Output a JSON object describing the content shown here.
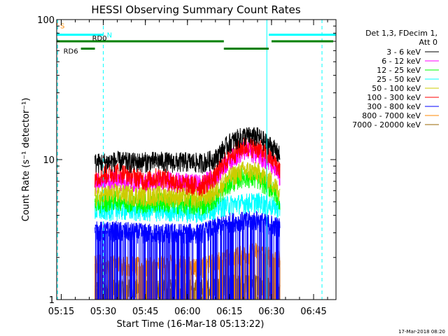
{
  "chart_data": {
    "type": "line",
    "title": "HESSI Observing Summary Count Rates",
    "xlabel": "Start Time (16-Mar-18 05:13:22)",
    "ylabel": "Count Rate (s⁻¹ detector⁻¹)",
    "yscale": "log",
    "xlim": [
      "05:13:22",
      "06:53:00"
    ],
    "ylim": [
      1,
      100
    ],
    "x_ticks": [
      "05:15",
      "05:30",
      "05:45",
      "06:00",
      "06:15",
      "06:30",
      "06:45"
    ],
    "y_ticks": [
      "1",
      "10",
      "100"
    ],
    "legend_header": [
      "Det 1,3, FDecim 1,",
      "Att 0"
    ],
    "legend_position": "right",
    "series": [
      {
        "name": "3 - 6 keV",
        "color": "#000000",
        "x": [
          "05:27",
          "05:30",
          "05:35",
          "05:40",
          "05:45",
          "05:50",
          "05:55",
          "06:00",
          "06:05",
          "06:10",
          "06:15",
          "06:20",
          "06:25",
          "06:30",
          "06:33"
        ],
        "y": [
          9.5,
          9.6,
          9.8,
          9.6,
          9.7,
          9.8,
          9.6,
          9.7,
          9.5,
          10.2,
          13.2,
          14.8,
          14.6,
          12.5,
          10.6
        ]
      },
      {
        "name": "6 - 12 keV",
        "color": "#ff00ff",
        "x": [
          "05:27",
          "05:30",
          "05:35",
          "05:40",
          "05:45",
          "05:50",
          "05:55",
          "06:00",
          "06:05",
          "06:10",
          "06:15",
          "06:20",
          "06:25",
          "06:30",
          "06:33"
        ],
        "y": [
          6.8,
          7.0,
          7.2,
          7.0,
          6.9,
          7.1,
          7.0,
          6.8,
          6.7,
          7.6,
          10.0,
          11.6,
          11.2,
          9.2,
          7.4
        ]
      },
      {
        "name": "12 - 25 keV",
        "color": "#00ff00",
        "x": [
          "05:27",
          "05:30",
          "05:35",
          "05:40",
          "05:45",
          "05:50",
          "05:55",
          "06:00",
          "06:05",
          "06:10",
          "06:15",
          "06:20",
          "06:25",
          "06:30",
          "06:33"
        ],
        "y": [
          4.9,
          5.0,
          5.2,
          5.0,
          4.9,
          5.0,
          4.9,
          4.8,
          4.7,
          5.3,
          6.8,
          7.6,
          7.3,
          6.2,
          5.2
        ]
      },
      {
        "name": "25 - 50 keV",
        "color": "#00ffff",
        "x": [
          "05:27",
          "05:35",
          "05:45",
          "05:55",
          "06:05",
          "06:15",
          "06:25",
          "06:33"
        ],
        "y": [
          4.3,
          4.4,
          4.3,
          4.3,
          4.2,
          4.8,
          5.0,
          4.5
        ]
      },
      {
        "name": "50 - 100 keV",
        "color": "#cccc00",
        "x": [
          "05:27",
          "05:30",
          "05:35",
          "05:40",
          "05:45",
          "05:50",
          "05:55",
          "06:00",
          "06:05",
          "06:10",
          "06:15",
          "06:20",
          "06:25",
          "06:30",
          "06:33"
        ],
        "y": [
          5.4,
          5.6,
          5.8,
          5.6,
          5.5,
          5.6,
          5.5,
          5.4,
          5.3,
          5.9,
          7.5,
          8.4,
          8.2,
          7.0,
          5.8
        ]
      },
      {
        "name": "100 - 300 keV",
        "color": "#ff0000",
        "x": [
          "05:27",
          "05:30",
          "05:35",
          "05:40",
          "05:45",
          "05:50",
          "05:55",
          "06:00",
          "06:05",
          "06:10",
          "06:15",
          "06:20",
          "06:25",
          "06:30",
          "06:33"
        ],
        "y": [
          7.6,
          7.9,
          8.2,
          7.8,
          7.1,
          7.6,
          7.0,
          6.6,
          6.5,
          7.6,
          10.6,
          12.5,
          12.2,
          10.2,
          8.6
        ]
      },
      {
        "name": "300 - 800 keV",
        "color": "#0000ff",
        "x": [
          "05:27",
          "05:35",
          "05:45",
          "05:55",
          "06:05",
          "06:15",
          "06:25",
          "06:33"
        ],
        "y": [
          3.1,
          3.1,
          3.0,
          3.0,
          3.0,
          3.6,
          3.7,
          3.3
        ]
      },
      {
        "name": "800 - 7000 keV",
        "color": "#ff8800",
        "x": [
          "05:27",
          "05:35",
          "05:45",
          "05:55",
          "06:05",
          "06:15",
          "06:25",
          "06:33"
        ],
        "y": [
          1.8,
          1.8,
          1.7,
          1.8,
          1.7,
          2.0,
          2.2,
          1.9
        ]
      },
      {
        "name": "7000 - 20000 keV",
        "color": "#996600",
        "x": [
          "05:27",
          "05:35",
          "05:45",
          "05:55",
          "06:05",
          "06:15",
          "06:25",
          "06:33"
        ],
        "y": [
          1.2,
          1.2,
          1.2,
          1.2,
          1.2,
          1.3,
          1.3,
          1.2
        ]
      }
    ],
    "annotations": {
      "flags": [
        {
          "label": "S",
          "color": "#ff8800",
          "segments": [
            [
              "05:13:22",
              "05:13:40"
            ]
          ],
          "y": 93
        },
        {
          "label": "N",
          "color": "#00ffff",
          "segments": [
            [
              "05:13:22",
              "05:30"
            ],
            [
              "06:29",
              "06:53"
            ]
          ],
          "y": 78
        },
        {
          "label": "RD0",
          "color": "#008000",
          "segments": [
            [
              "05:13:22",
              "05:31"
            ],
            [
              "05:31",
              "06:13"
            ],
            [
              "06:30",
              "06:52"
            ]
          ],
          "y": 70
        },
        {
          "label": "RD6",
          "color": "#008000",
          "segments": [
            [
              "05:22",
              "05:27"
            ],
            [
              "06:13",
              "06:29"
            ]
          ],
          "y": 62
        }
      ],
      "vertical_lines": [
        {
          "x": "05:13:40",
          "color": "#00ffff",
          "style": "dashed"
        },
        {
          "x": "05:30",
          "color": "#00ffff",
          "style": "dashed"
        },
        {
          "x": "06:28:20",
          "color": "#00ffff",
          "style": "solid"
        },
        {
          "x": "06:48",
          "color": "#00ffff",
          "style": "dashed"
        }
      ],
      "data_span": [
        "05:27",
        "06:33"
      ]
    }
  },
  "footer_timestamp": "17-Mar-2018 08:20"
}
